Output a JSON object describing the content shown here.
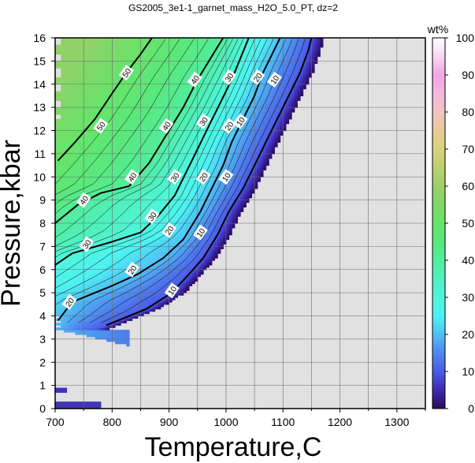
{
  "chart_data": {
    "type": "heatmap",
    "title": "GS2005_3e1-1_garnet_mass_H2O_5.0_PT, dz=2",
    "xlabel": "Temperature,C",
    "ylabel": "Pressure,kbar",
    "xlim": [
      700,
      1350
    ],
    "ylim": [
      0,
      16
    ],
    "xticks": [
      700,
      800,
      900,
      1000,
      1100,
      1200,
      1300
    ],
    "yticks": [
      0,
      1,
      2,
      3,
      4,
      5,
      6,
      7,
      8,
      9,
      10,
      11,
      12,
      13,
      14,
      15,
      16
    ],
    "grid": true,
    "no_data_color": "#e1e1e1",
    "colorbar": {
      "label": "wt%",
      "range": [
        0,
        100
      ],
      "ticks": [
        0,
        10,
        20,
        30,
        40,
        50,
        60,
        70,
        80,
        90,
        100
      ],
      "stops": [
        {
          "v": 0,
          "c": "#2a0a5e"
        },
        {
          "v": 5,
          "c": "#3d2ab0"
        },
        {
          "v": 10,
          "c": "#4b5ae8"
        },
        {
          "v": 15,
          "c": "#4f86ee"
        },
        {
          "v": 20,
          "c": "#4fc0f4"
        },
        {
          "v": 25,
          "c": "#4ef2f2"
        },
        {
          "v": 30,
          "c": "#4ff5dc"
        },
        {
          "v": 35,
          "c": "#50f0c0"
        },
        {
          "v": 40,
          "c": "#52ec9c"
        },
        {
          "v": 45,
          "c": "#5ae87c"
        },
        {
          "v": 50,
          "c": "#66e46a"
        },
        {
          "v": 55,
          "c": "#7ed868"
        },
        {
          "v": 60,
          "c": "#9cd06a"
        },
        {
          "v": 65,
          "c": "#bcd070"
        },
        {
          "v": 70,
          "c": "#d8d27c"
        },
        {
          "v": 75,
          "c": "#ebc89a"
        },
        {
          "v": 80,
          "c": "#f2c4c4"
        },
        {
          "v": 85,
          "c": "#f4b6dc"
        },
        {
          "v": 90,
          "c": "#f2a6e8"
        },
        {
          "v": 95,
          "c": "#f8d6f2"
        },
        {
          "v": 100,
          "c": "#ffffff"
        }
      ]
    },
    "contours": [
      {
        "level": 10,
        "points": [
          [
            790,
            3.6
          ],
          [
            860,
            4.3
          ],
          [
            905,
            5.0
          ],
          [
            935,
            5.8
          ],
          [
            960,
            6.5
          ],
          [
            985,
            7.5
          ],
          [
            1005,
            8.5
          ],
          [
            1030,
            9.5
          ],
          [
            1050,
            10.5
          ],
          [
            1070,
            11.5
          ],
          [
            1090,
            12.5
          ],
          [
            1110,
            13.5
          ],
          [
            1130,
            14.5
          ],
          [
            1145,
            15.5
          ],
          [
            1150,
            16
          ]
        ]
      },
      {
        "level": 20,
        "points": [
          [
            705,
            3.8
          ],
          [
            730,
            4.6
          ],
          [
            760,
            4.9
          ],
          [
            800,
            5.3
          ],
          [
            845,
            5.8
          ],
          [
            890,
            6.5
          ],
          [
            925,
            7.3
          ],
          [
            955,
            8.5
          ],
          [
            975,
            9.5
          ],
          [
            995,
            10.5
          ],
          [
            1010,
            11.5
          ],
          [
            1030,
            12.5
          ],
          [
            1050,
            13.5
          ],
          [
            1065,
            14.5
          ],
          [
            1085,
            15.5
          ],
          [
            1095,
            16
          ]
        ]
      },
      {
        "level": 30,
        "points": [
          [
            700,
            6.2
          ],
          [
            730,
            6.7
          ],
          [
            800,
            7.2
          ],
          [
            850,
            7.6
          ],
          [
            880,
            8.3
          ],
          [
            910,
            9.2
          ],
          [
            930,
            10.2
          ],
          [
            950,
            11.2
          ],
          [
            970,
            12.2
          ],
          [
            990,
            13.2
          ],
          [
            1010,
            14.2
          ],
          [
            1025,
            15.1
          ],
          [
            1040,
            16
          ]
        ]
      },
      {
        "level": 40,
        "points": [
          [
            700,
            8.0
          ],
          [
            740,
            8.8
          ],
          [
            780,
            9.3
          ],
          [
            830,
            9.6
          ],
          [
            865,
            10.6
          ],
          [
            895,
            11.8
          ],
          [
            925,
            13.0
          ],
          [
            950,
            14.2
          ],
          [
            975,
            15.2
          ],
          [
            995,
            16
          ]
        ]
      },
      {
        "level": 50,
        "points": [
          [
            705,
            10.7
          ],
          [
            735,
            11.5
          ],
          [
            770,
            12.5
          ],
          [
            800,
            13.6
          ],
          [
            825,
            14.5
          ],
          [
            850,
            15.3
          ],
          [
            870,
            16
          ]
        ]
      }
    ],
    "contour_labels": [
      {
        "text": "10",
        "x": 905,
        "y": 5.1
      },
      {
        "text": "10",
        "x": 955,
        "y": 7.6
      },
      {
        "text": "10",
        "x": 1000,
        "y": 10.0
      },
      {
        "text": "10",
        "x": 1025,
        "y": 12.4
      },
      {
        "text": "10",
        "x": 1085,
        "y": 14.2
      },
      {
        "text": "20",
        "x": 725,
        "y": 4.6
      },
      {
        "text": "20",
        "x": 835,
        "y": 6.0
      },
      {
        "text": "20",
        "x": 900,
        "y": 7.7
      },
      {
        "text": "20",
        "x": 960,
        "y": 10.0
      },
      {
        "text": "20",
        "x": 1005,
        "y": 12.2
      },
      {
        "text": "20",
        "x": 1055,
        "y": 14.3
      },
      {
        "text": "30",
        "x": 755,
        "y": 7.1
      },
      {
        "text": "30",
        "x": 870,
        "y": 8.3
      },
      {
        "text": "30",
        "x": 910,
        "y": 10.0
      },
      {
        "text": "30",
        "x": 960,
        "y": 12.4
      },
      {
        "text": "30",
        "x": 1005,
        "y": 14.3
      },
      {
        "text": "40",
        "x": 750,
        "y": 9.0
      },
      {
        "text": "40",
        "x": 835,
        "y": 10.0
      },
      {
        "text": "40",
        "x": 895,
        "y": 12.2
      },
      {
        "text": "40",
        "x": 945,
        "y": 14.2
      },
      {
        "text": "50",
        "x": 780,
        "y": 12.2
      },
      {
        "text": "50",
        "x": 825,
        "y": 14.5
      }
    ]
  }
}
